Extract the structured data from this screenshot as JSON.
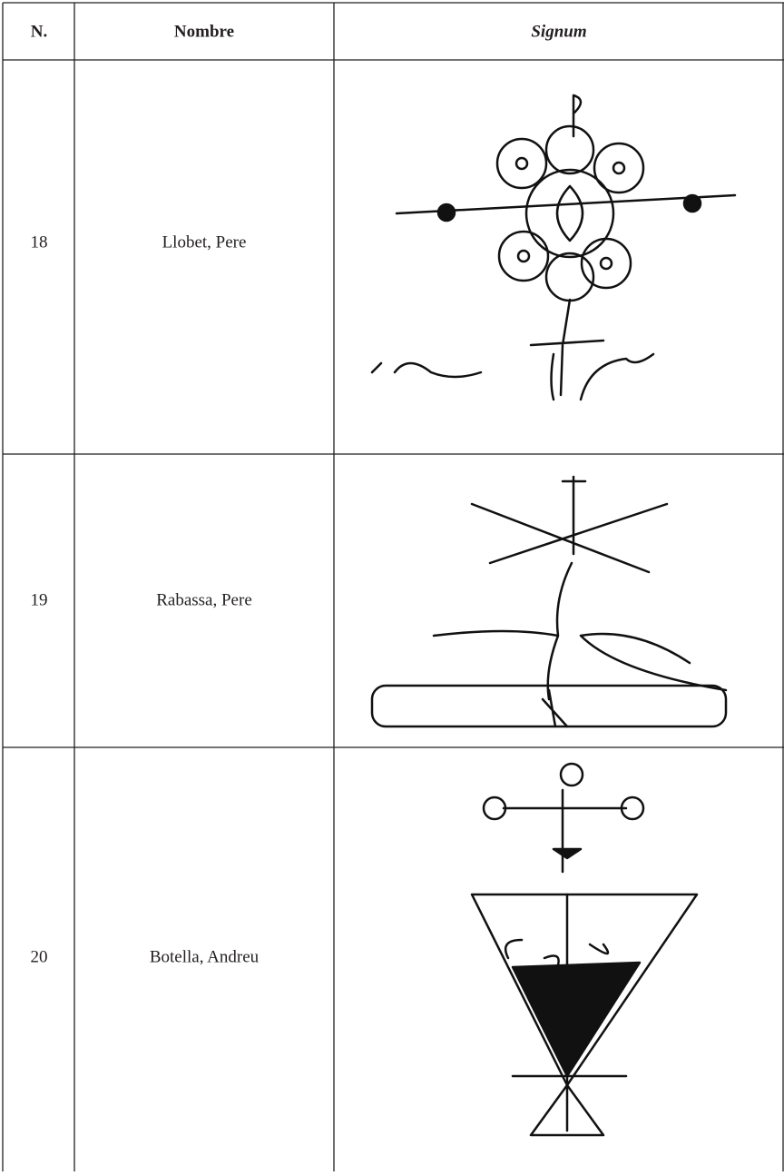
{
  "table": {
    "header": [
      "N.",
      "Nombre",
      "Signum"
    ],
    "rows": [
      [
        "18",
        "Llobet, Pere"
      ],
      [
        "19",
        "Rabassa, Pere"
      ],
      [
        "20",
        "Botella, Andreu"
      ]
    ]
  }
}
